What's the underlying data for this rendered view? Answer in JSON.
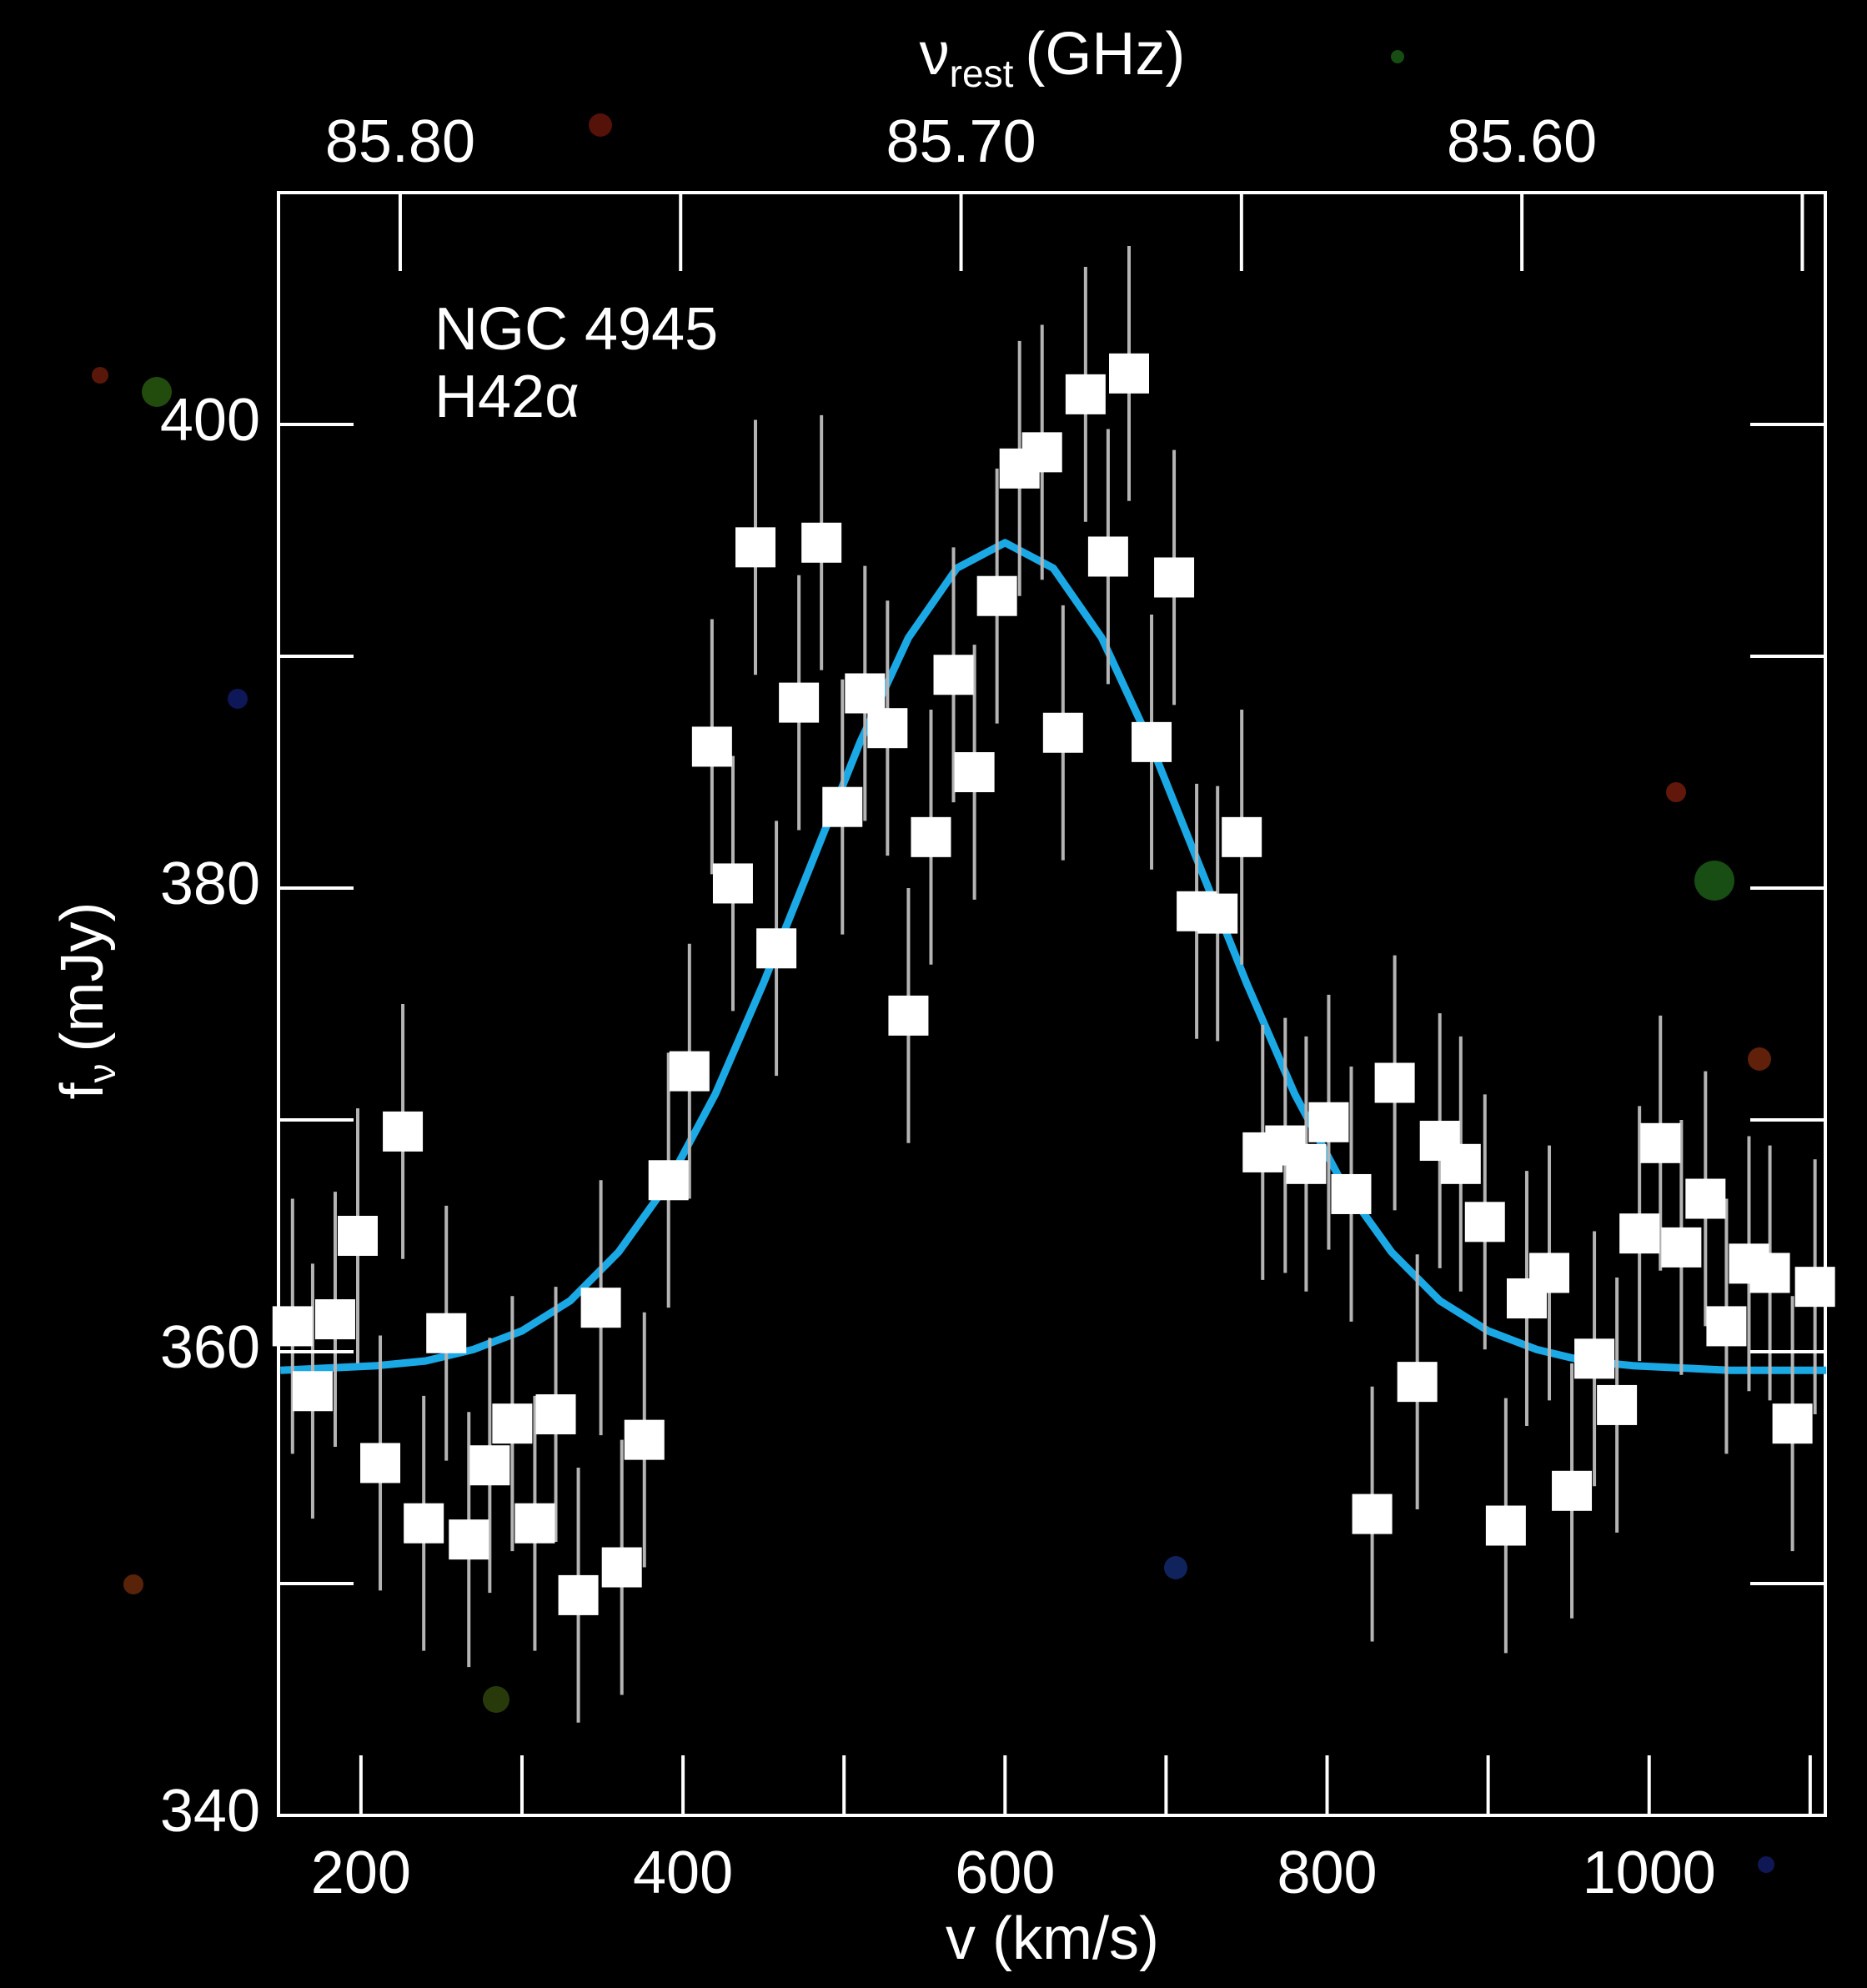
{
  "chart_data": {
    "type": "scatter",
    "annotations": [
      "NGC 4945",
      "H42α"
    ],
    "xlabel": "v (km/s)",
    "ylabel": {
      "main": "f",
      "sub": "ν",
      "unit": "(mJy)"
    },
    "x2label": {
      "main": "ν",
      "sub": "rest",
      "unit": "(GHz)"
    },
    "x": [
      157.5,
      170,
      184,
      198,
      212,
      226,
      239,
      253,
      267,
      280,
      294,
      308,
      321,
      335,
      349,
      362,
      376,
      391,
      404,
      418,
      431,
      445,
      458,
      472,
      486,
      499,
      513,
      527,
      540,
      554,
      568,
      581,
      595,
      609,
      623,
      636,
      650,
      664,
      677,
      691,
      705,
      719,
      732,
      747,
      760,
      774,
      787,
      801,
      815,
      828,
      842,
      856,
      870,
      883,
      898,
      911,
      924,
      938,
      952,
      966,
      980,
      994,
      1007,
      1020,
      1035,
      1048,
      1062,
      1075,
      1089,
      1103
    ],
    "series": [
      {
        "color": "#ffffff",
        "error_color": "#b4b4b4",
        "values": [
          361.1,
          358.3,
          361.4,
          365.0,
          355.2,
          369.5,
          352.6,
          360.8,
          351.9,
          355.1,
          356.9,
          352.6,
          357.3,
          349.5,
          361.9,
          350.7,
          356.2,
          367.4,
          372.1,
          386.1,
          380.2,
          394.7,
          377.4,
          388.0,
          394.9,
          383.5,
          388.4,
          386.9,
          374.5,
          382.2,
          389.2,
          385.0,
          392.6,
          398.1,
          398.8,
          386.7,
          401.3,
          394.3,
          402.2,
          386.3,
          393.4,
          379.0,
          378.9,
          382.2,
          368.6,
          368.9,
          368.1,
          369.9,
          366.8,
          353.0,
          371.6,
          358.7,
          369.1,
          368.1,
          365.6,
          352.5,
          362.3,
          363.4,
          354.0,
          359.7,
          357.7,
          365.1,
          369.0,
          364.5,
          366.6,
          361.1,
          363.8,
          363.4,
          356.9,
          362.8
        ],
        "errors": [
          5.5,
          5.5,
          5.5,
          5.5,
          5.5,
          5.5,
          5.5,
          5.5,
          5.5,
          5.5,
          5.5,
          5.5,
          5.5,
          5.5,
          5.5,
          5.5,
          5.5,
          5.5,
          5.5,
          5.5,
          5.5,
          5.5,
          5.5,
          5.5,
          5.5,
          5.5,
          5.5,
          5.5,
          5.5,
          5.5,
          5.5,
          5.5,
          5.5,
          5.5,
          5.5,
          5.5,
          5.5,
          5.5,
          5.5,
          5.5,
          5.5,
          5.5,
          5.5,
          5.5,
          5.5,
          5.5,
          5.5,
          5.5,
          5.5,
          5.5,
          5.5,
          5.5,
          5.5,
          5.5,
          5.5,
          5.5,
          5.5,
          5.5,
          5.5,
          5.5,
          5.5,
          5.5,
          5.5,
          5.5,
          5.5,
          5.5,
          5.5,
          5.5,
          5.5,
          5.5
        ]
      }
    ],
    "fit": {
      "color": "#1ba9e6",
      "x": [
        150,
        180,
        210,
        240,
        270,
        300,
        330,
        360,
        390,
        420,
        450,
        480,
        510,
        540,
        570,
        600,
        630,
        660,
        690,
        720,
        750,
        780,
        810,
        840,
        870,
        900,
        930,
        960,
        990,
        1020,
        1050,
        1080,
        1110
      ],
      "values": [
        359.2,
        359.3,
        359.4,
        359.6,
        360.1,
        360.9,
        362.2,
        364.3,
        367.2,
        371.1,
        375.9,
        381.1,
        386.3,
        390.8,
        393.8,
        394.9,
        393.8,
        390.8,
        386.3,
        381.1,
        375.9,
        371.1,
        367.2,
        364.3,
        362.2,
        360.9,
        360.1,
        359.6,
        359.4,
        359.3,
        359.2,
        359.2,
        359.2
      ]
    },
    "xlim": [
      148.8,
      1109.4
    ],
    "ylim": [
      340,
      410
    ],
    "xticks": [
      200,
      400,
      600,
      800,
      1000
    ],
    "xminorticks": [
      300,
      500,
      700,
      900,
      1100
    ],
    "yticks": [
      340,
      360,
      380,
      400
    ],
    "yminorticks": [
      350,
      370,
      390
    ],
    "x2lim": [
      85.8217,
      85.5459
    ],
    "x2ticks": [
      {
        "value": 85.8,
        "label": "85.80"
      },
      {
        "value": 85.7,
        "label": "85.70"
      },
      {
        "value": 85.6,
        "label": "85.60"
      }
    ],
    "x2minorticks": [
      85.75,
      85.65,
      85.55
    ]
  }
}
